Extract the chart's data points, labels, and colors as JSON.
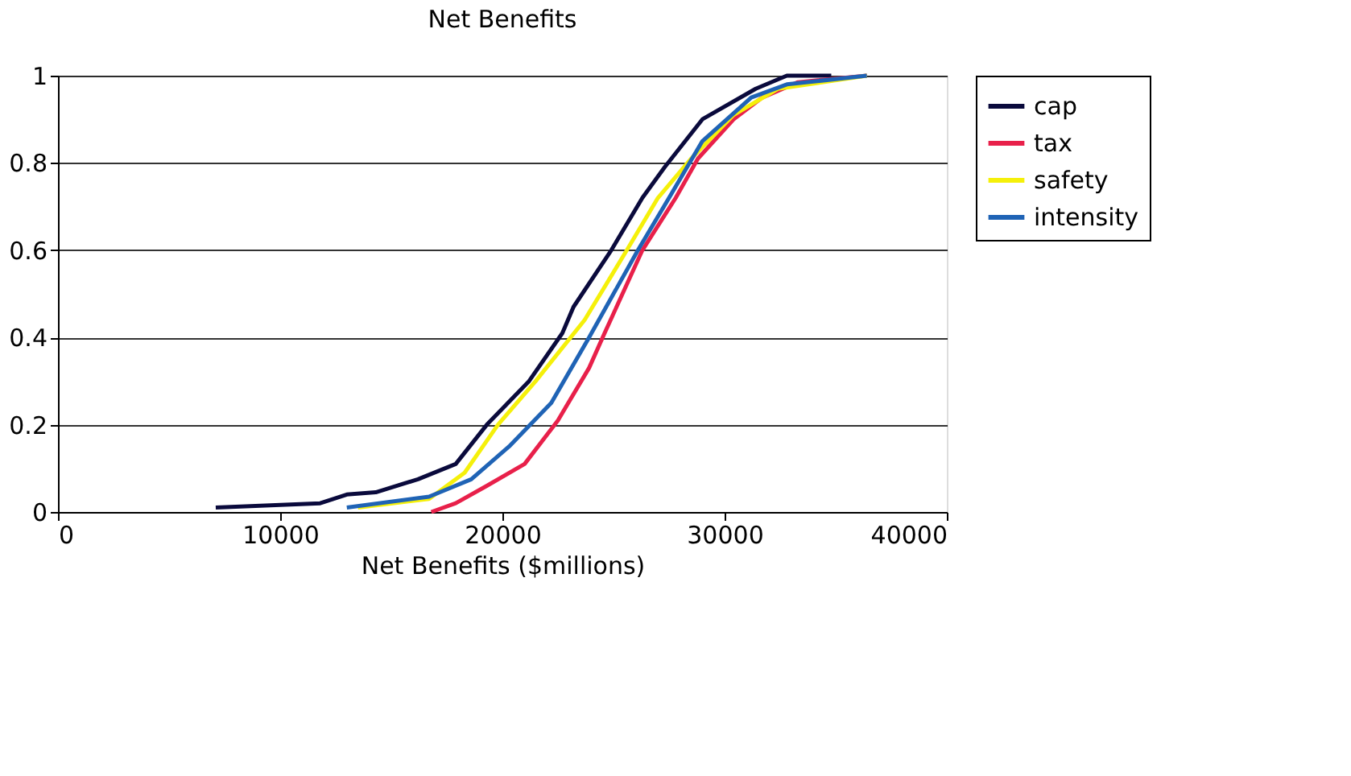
{
  "chart_data": {
    "type": "line",
    "title": "Net Benefits",
    "xlabel": "Net Benefits ($millions)",
    "xlim": [
      0,
      40000
    ],
    "xticks": [
      0,
      10000,
      20000,
      30000,
      40000
    ],
    "ylim": [
      0,
      1
    ],
    "yticks": [
      0,
      0.2,
      0.4,
      0.6,
      0.8,
      1
    ],
    "grid": "y",
    "legend": "right",
    "marker": "none",
    "line_style": "solid",
    "series": [
      {
        "name": "cap",
        "color": "#0a0a3c",
        "x": [
          7100,
          11800,
          13000,
          14300,
          16200,
          17900,
          19300,
          21200,
          22700,
          23200,
          24900,
          26300,
          27300,
          29000,
          31400,
          32800,
          34800
        ],
        "values": [
          0.01,
          0.02,
          0.04,
          0.045,
          0.075,
          0.11,
          0.2,
          0.3,
          0.41,
          0.47,
          0.6,
          0.72,
          0.79,
          0.9,
          0.97,
          1.0,
          1.0
        ]
      },
      {
        "name": "tax",
        "color": "#e8204a",
        "x": [
          16800,
          17900,
          19300,
          21000,
          22500,
          23900,
          24600,
          26300,
          27800,
          28800,
          30400,
          31700,
          33300,
          36400
        ],
        "values": [
          0.0,
          0.02,
          0.06,
          0.11,
          0.21,
          0.33,
          0.41,
          0.6,
          0.72,
          0.81,
          0.9,
          0.95,
          0.985,
          1.0
        ]
      },
      {
        "name": "safety",
        "color": "#f5f00a",
        "x": [
          13500,
          16700,
          18300,
          19800,
          21500,
          23700,
          25600,
          27000,
          28500,
          30400,
          32400,
          36400
        ],
        "values": [
          0.01,
          0.03,
          0.09,
          0.2,
          0.3,
          0.44,
          0.6,
          0.72,
          0.81,
          0.91,
          0.97,
          1.0
        ]
      },
      {
        "name": "intensity",
        "color": "#1f63b5",
        "x": [
          13000,
          16700,
          18600,
          20300,
          22200,
          23900,
          26100,
          27500,
          29000,
          31200,
          32800,
          36400
        ],
        "values": [
          0.01,
          0.035,
          0.075,
          0.15,
          0.25,
          0.4,
          0.6,
          0.72,
          0.85,
          0.95,
          0.98,
          1.0
        ]
      }
    ]
  }
}
